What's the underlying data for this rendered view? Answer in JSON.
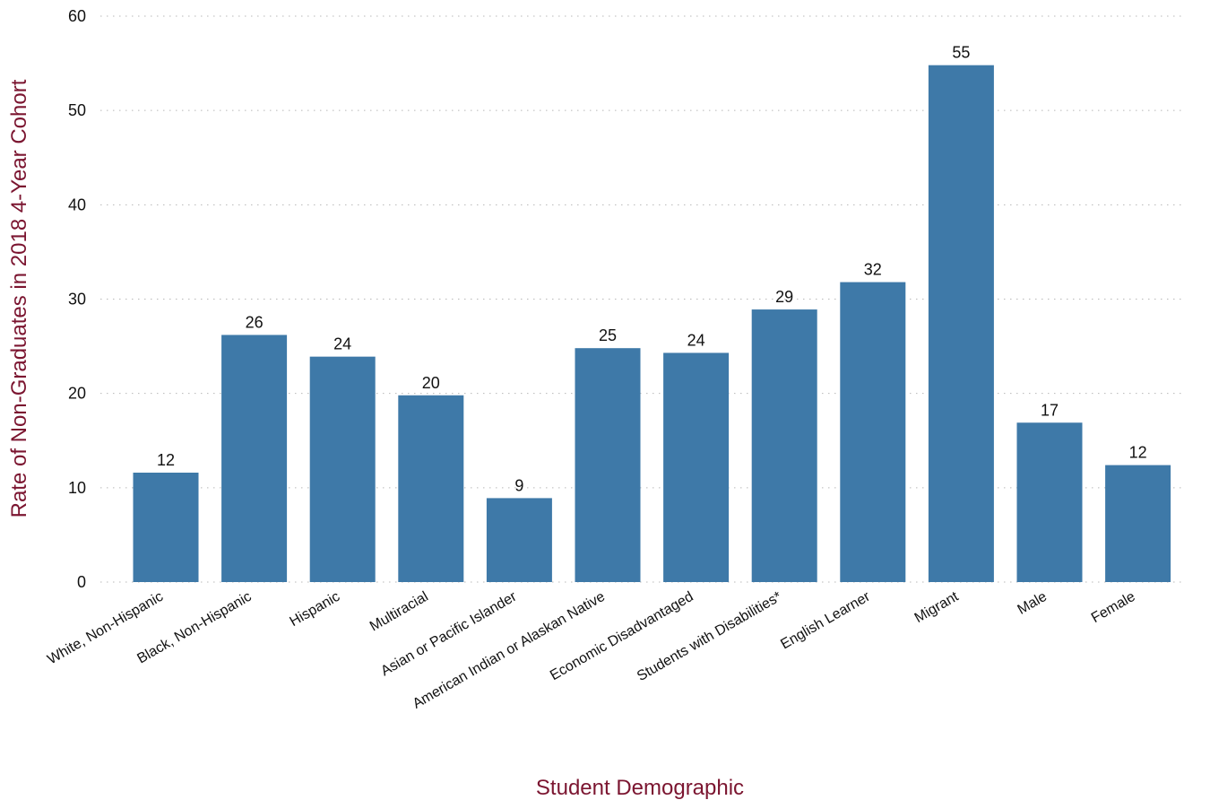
{
  "chart_data": {
    "type": "bar",
    "xlabel": "Student Demographic",
    "ylabel": "Rate of Non-Graduates in 2018 4-Year Cohort",
    "ylim": [
      0,
      60
    ],
    "yticks": [
      0,
      10,
      20,
      30,
      40,
      50,
      60
    ],
    "grid": "horizontal dotted",
    "bar_color": "#3e79a8",
    "label_color": "#7b1530",
    "categories": [
      "White, Non-Hispanic",
      "Black, Non-Hispanic",
      "Hispanic",
      "Multiracial",
      "Asian or Pacific Islander",
      "American Indian or Alaskan Native",
      "Economic Disadvantaged",
      "Students with Disabilities*",
      "English Learner",
      "Migrant",
      "Male",
      "Female"
    ],
    "values": [
      11.6,
      26.2,
      23.9,
      19.8,
      8.9,
      24.8,
      24.3,
      28.9,
      31.8,
      54.8,
      16.9,
      12.4
    ],
    "data_labels": [
      "12",
      "26",
      "24",
      "20",
      "9",
      "25",
      "24",
      "29",
      "32",
      "55",
      "17",
      "12"
    ]
  }
}
